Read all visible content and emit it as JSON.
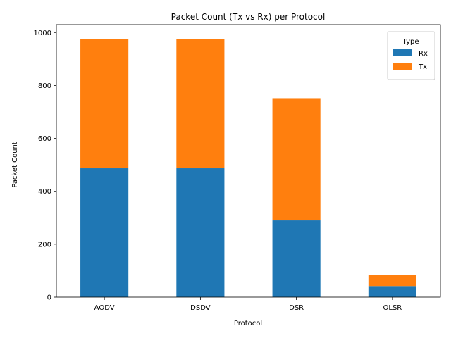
{
  "chart_data": {
    "type": "bar",
    "stacked": true,
    "title": "Packet Count (Tx vs Rx) per Protocol",
    "xlabel": "Protocol",
    "ylabel": "Packet Count",
    "categories": [
      "AODV",
      "DSDV",
      "DSR",
      "OLSR"
    ],
    "series": [
      {
        "name": "Rx",
        "values": [
          487,
          487,
          290,
          42
        ],
        "color": "#1f77b4"
      },
      {
        "name": "Tx",
        "values": [
          488,
          488,
          462,
          43
        ],
        "color": "#ff7f0e"
      }
    ],
    "ylim": [
      0,
      1030
    ],
    "yticks": [
      0,
      200,
      400,
      600,
      800,
      1000
    ],
    "legend": {
      "title": "Type",
      "position": "top-right"
    },
    "grid": false
  }
}
